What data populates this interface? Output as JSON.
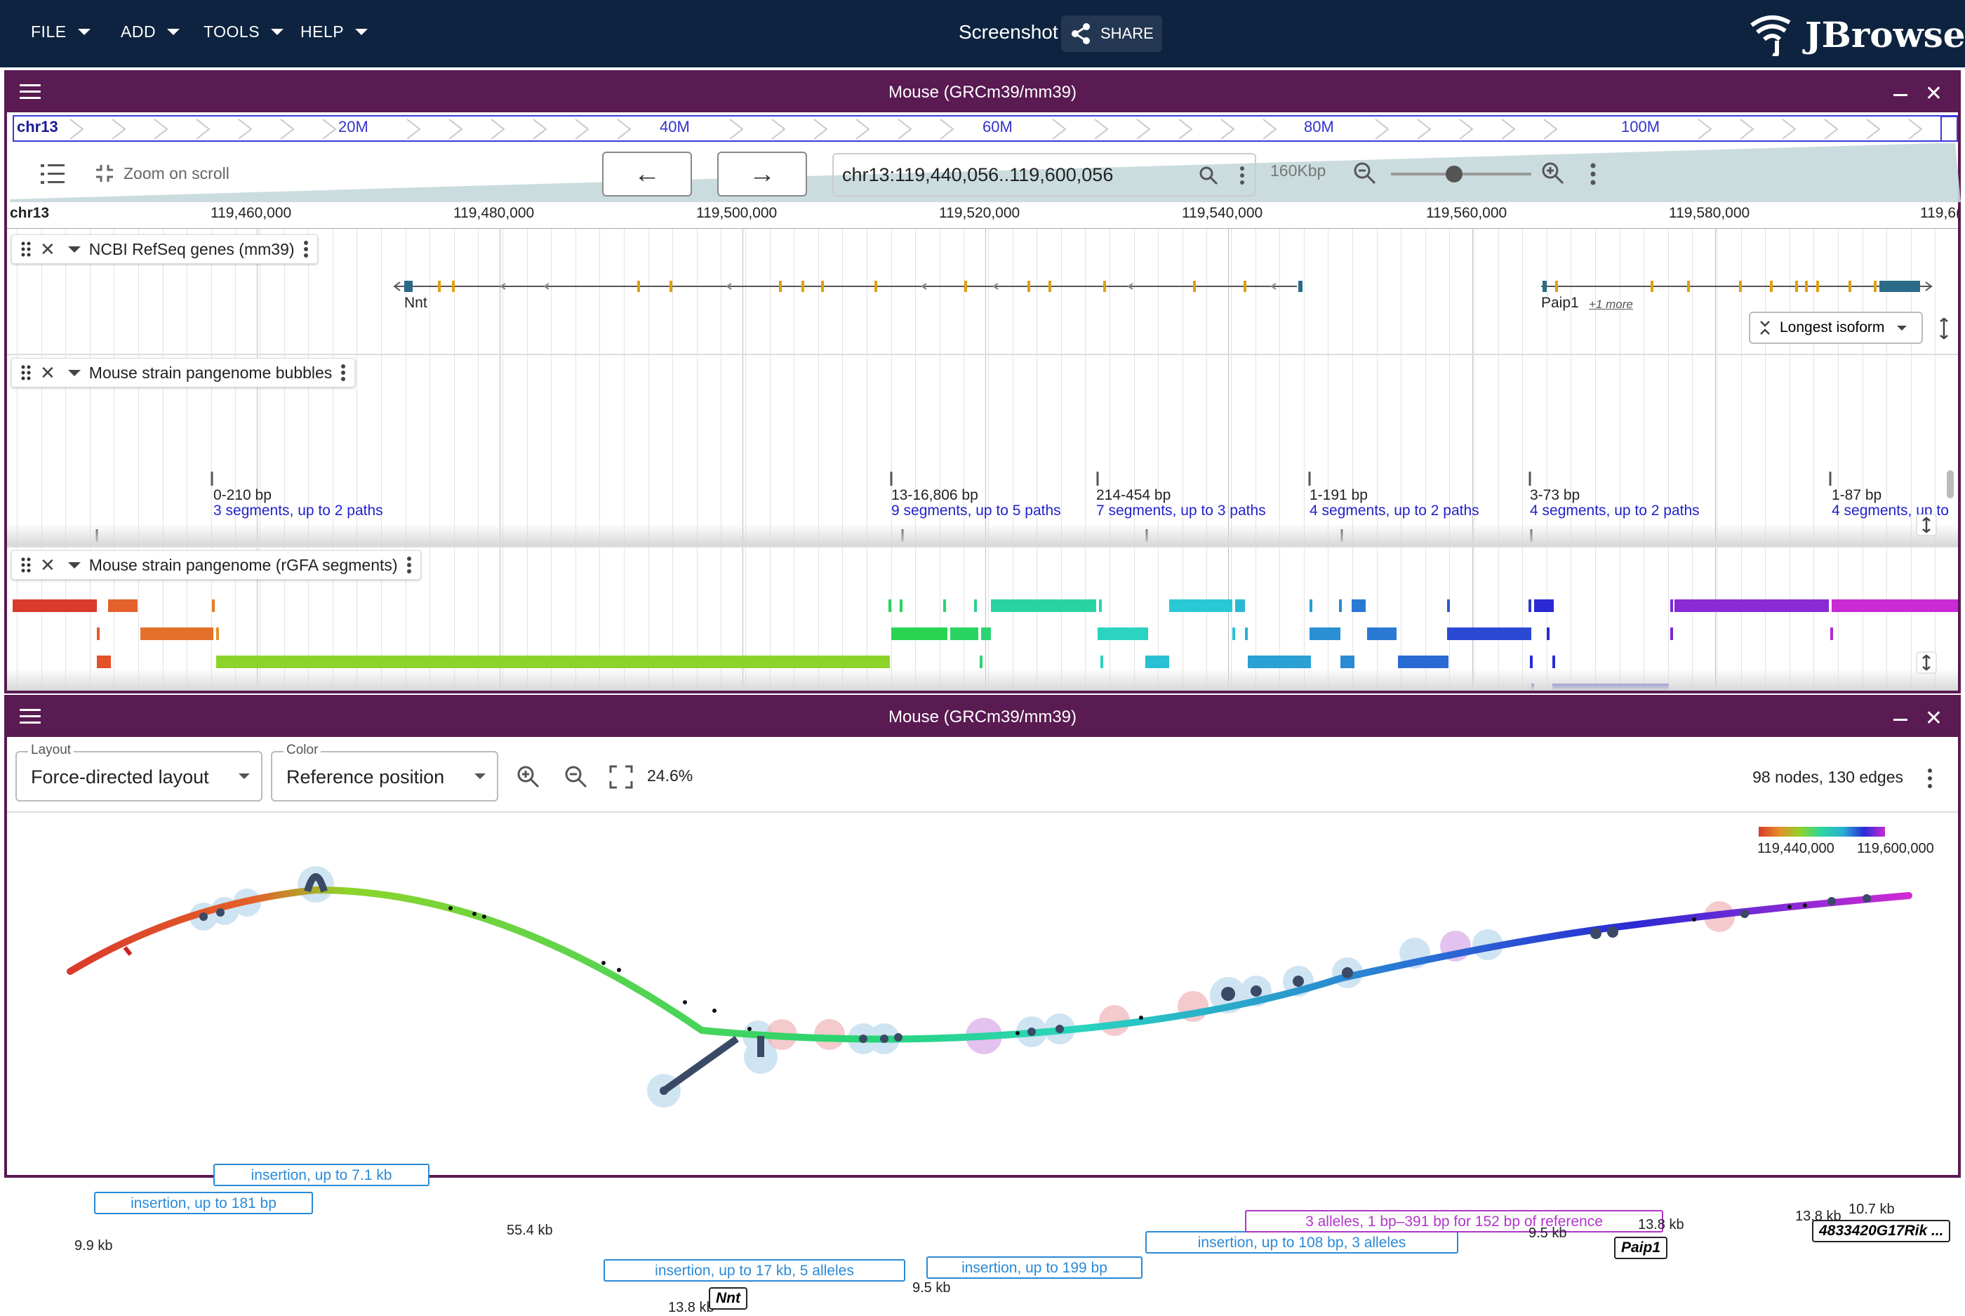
{
  "topbar": {
    "menus": [
      "FILE",
      "ADD",
      "TOOLS",
      "HELP"
    ],
    "screenshot_title": "Screenshot",
    "share_label": "SHARE",
    "logo_text": "JBrowse"
  },
  "linear_view": {
    "title": "Mouse (GRCm39/mm39)",
    "overview": {
      "chrom": "chr13",
      "labels": [
        "20M",
        "40M",
        "60M",
        "80M",
        "100M"
      ]
    },
    "controls": {
      "zoom_on_scroll": "Zoom on scroll",
      "prev_label": "←",
      "next_label": "→",
      "location": "chr13:119,440,056..119,600,056",
      "span": "160Kbp"
    },
    "ruler": {
      "chrom": "chr13",
      "ticks": [
        "119,460,000",
        "119,480,000",
        "119,500,000",
        "119,520,000",
        "119,540,000",
        "119,560,000",
        "119,580,000",
        "119,6("
      ]
    },
    "tracks": {
      "genes": {
        "name": "NCBI RefSeq genes (mm39)",
        "gene1": "Nnt",
        "gene2": "Paip1",
        "more": "+1 more",
        "isoform_select": "Longest isoform"
      },
      "bubbles": {
        "name": "Mouse strain pangenome bubbles",
        "items": [
          {
            "size": "0-210 bp",
            "desc": "3 segments, up to 2 paths"
          },
          {
            "size": "13-16,806 bp",
            "desc": "9 segments, up to 5 paths"
          },
          {
            "size": "214-454 bp",
            "desc": "7 segments, up to 3 paths"
          },
          {
            "size": "1-191 bp",
            "desc": "4 segments, up to 2 paths"
          },
          {
            "size": "3-73 bp",
            "desc": "4 segments, up to 2 paths"
          },
          {
            "size": "1-87 bp",
            "desc": "4 segments, up to"
          }
        ]
      },
      "segments": {
        "name": "Mouse strain pangenome (rGFA segments)"
      }
    }
  },
  "graph_view": {
    "title": "Mouse (GRCm39/mm39)",
    "layout_legend": "Layout",
    "layout_value": "Force-directed layout",
    "color_legend": "Color",
    "color_value": "Reference position",
    "zoom_percent": "24.6%",
    "stats": "98 nodes, 130 edges",
    "color_scale": {
      "min": "119,440,000",
      "max": "119,600,000"
    },
    "annotations": [
      "insertion, up to 7.1 kb",
      "insertion, up to 181 bp",
      "insertion, up to 17 kb, 5 alleles",
      "insertion, up to 199 bp",
      "insertion, up to 108 bp, 3 alleles",
      "3 alleles, 1 bp–391 bp for 152 bp of reference"
    ],
    "edge_labels": [
      "9.9 kb",
      "55.4 kb",
      "13.8 kb",
      "9.5 kb",
      "9.5 kb",
      "13.8 kb",
      "13.8 kb",
      "10.7 kb"
    ],
    "gene_tags": [
      "Nnt",
      "Paip1",
      "4833420G17Rik ..."
    ]
  },
  "colors": {
    "topbar": "#0d233f",
    "view_header": "#5a1a52",
    "accent_blue": "#2a8ad6",
    "accent_purple": "#b235c9"
  }
}
